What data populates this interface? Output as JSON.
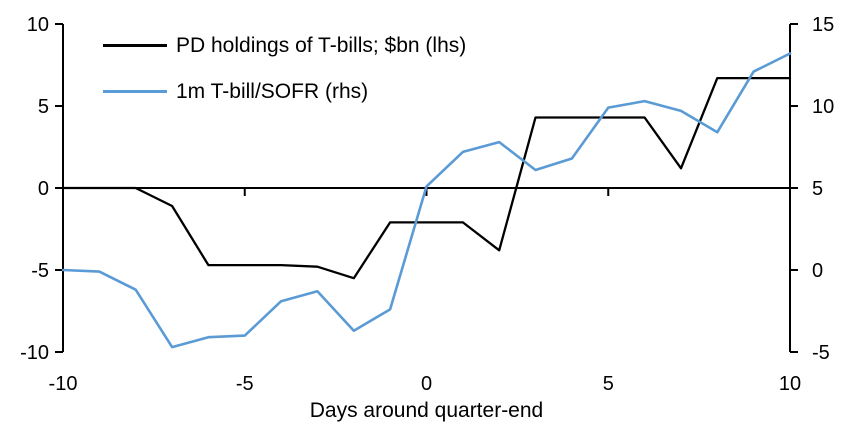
{
  "chart_data": {
    "type": "line",
    "title": "",
    "xlabel": "Days around quarter-end",
    "x": [
      -10,
      -9,
      -8,
      -7,
      -6,
      -5,
      -4,
      -3,
      -2,
      -1,
      0,
      1,
      2,
      3,
      4,
      5,
      6,
      7,
      8,
      9,
      10
    ],
    "series": [
      {
        "name": "PD holdings of T-bills; $bn (lhs)",
        "axis": "left",
        "color": "#000000",
        "values": [
          0,
          0,
          0,
          -1.1,
          -4.7,
          -4.7,
          -4.7,
          -4.8,
          -5.5,
          -2.1,
          -2.1,
          -2.1,
          -3.8,
          4.3,
          4.3,
          4.3,
          4.3,
          1.2,
          6.7,
          6.7,
          6.7
        ]
      },
      {
        "name": "1m T-bill/SOFR (rhs)",
        "axis": "right",
        "color": "#5B9BD5",
        "values": [
          0.0,
          -0.1,
          -1.2,
          -4.7,
          -4.1,
          -4.0,
          -1.9,
          -1.3,
          -3.7,
          -2.4,
          5.1,
          7.2,
          7.8,
          6.1,
          6.8,
          9.9,
          10.3,
          9.7,
          8.4,
          12.1,
          13.2
        ]
      }
    ],
    "left_axis": {
      "range": [
        -10,
        10
      ],
      "ticks": [
        10,
        5,
        0,
        -5,
        -10
      ]
    },
    "right_axis": {
      "range": [
        -5,
        15
      ],
      "ticks": [
        15,
        10,
        5,
        0,
        -5
      ]
    },
    "x_axis": {
      "range": [
        -10,
        10
      ],
      "tick_labels": [
        -10,
        -5,
        0,
        5,
        10
      ],
      "zero_line_ticks": [
        -5,
        0,
        5
      ]
    },
    "legend_position": "top-left",
    "grid": false
  }
}
